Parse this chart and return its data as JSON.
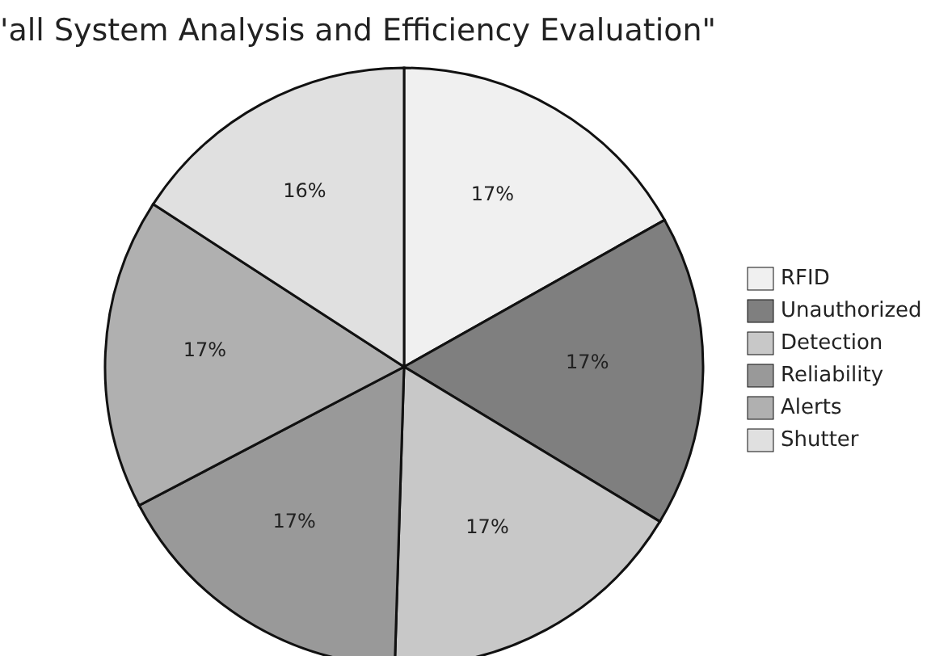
{
  "chart_data": {
    "type": "pie",
    "title": "'all System Analysis and Efficiency Evaluation\"",
    "categories": [
      "RFID",
      "Unauthorized",
      "Detection",
      "Reliability",
      "Alerts",
      "Shutter"
    ],
    "values": [
      17,
      17,
      17,
      17,
      17,
      16
    ],
    "colors": [
      "#f0f0f0",
      "#7f7f7f",
      "#c8c8c8",
      "#999999",
      "#b0b0b0",
      "#e0e0e0"
    ],
    "value_labels": [
      "17%",
      "17%",
      "17%",
      "17%",
      "17%",
      "16%"
    ],
    "legend": "right"
  }
}
